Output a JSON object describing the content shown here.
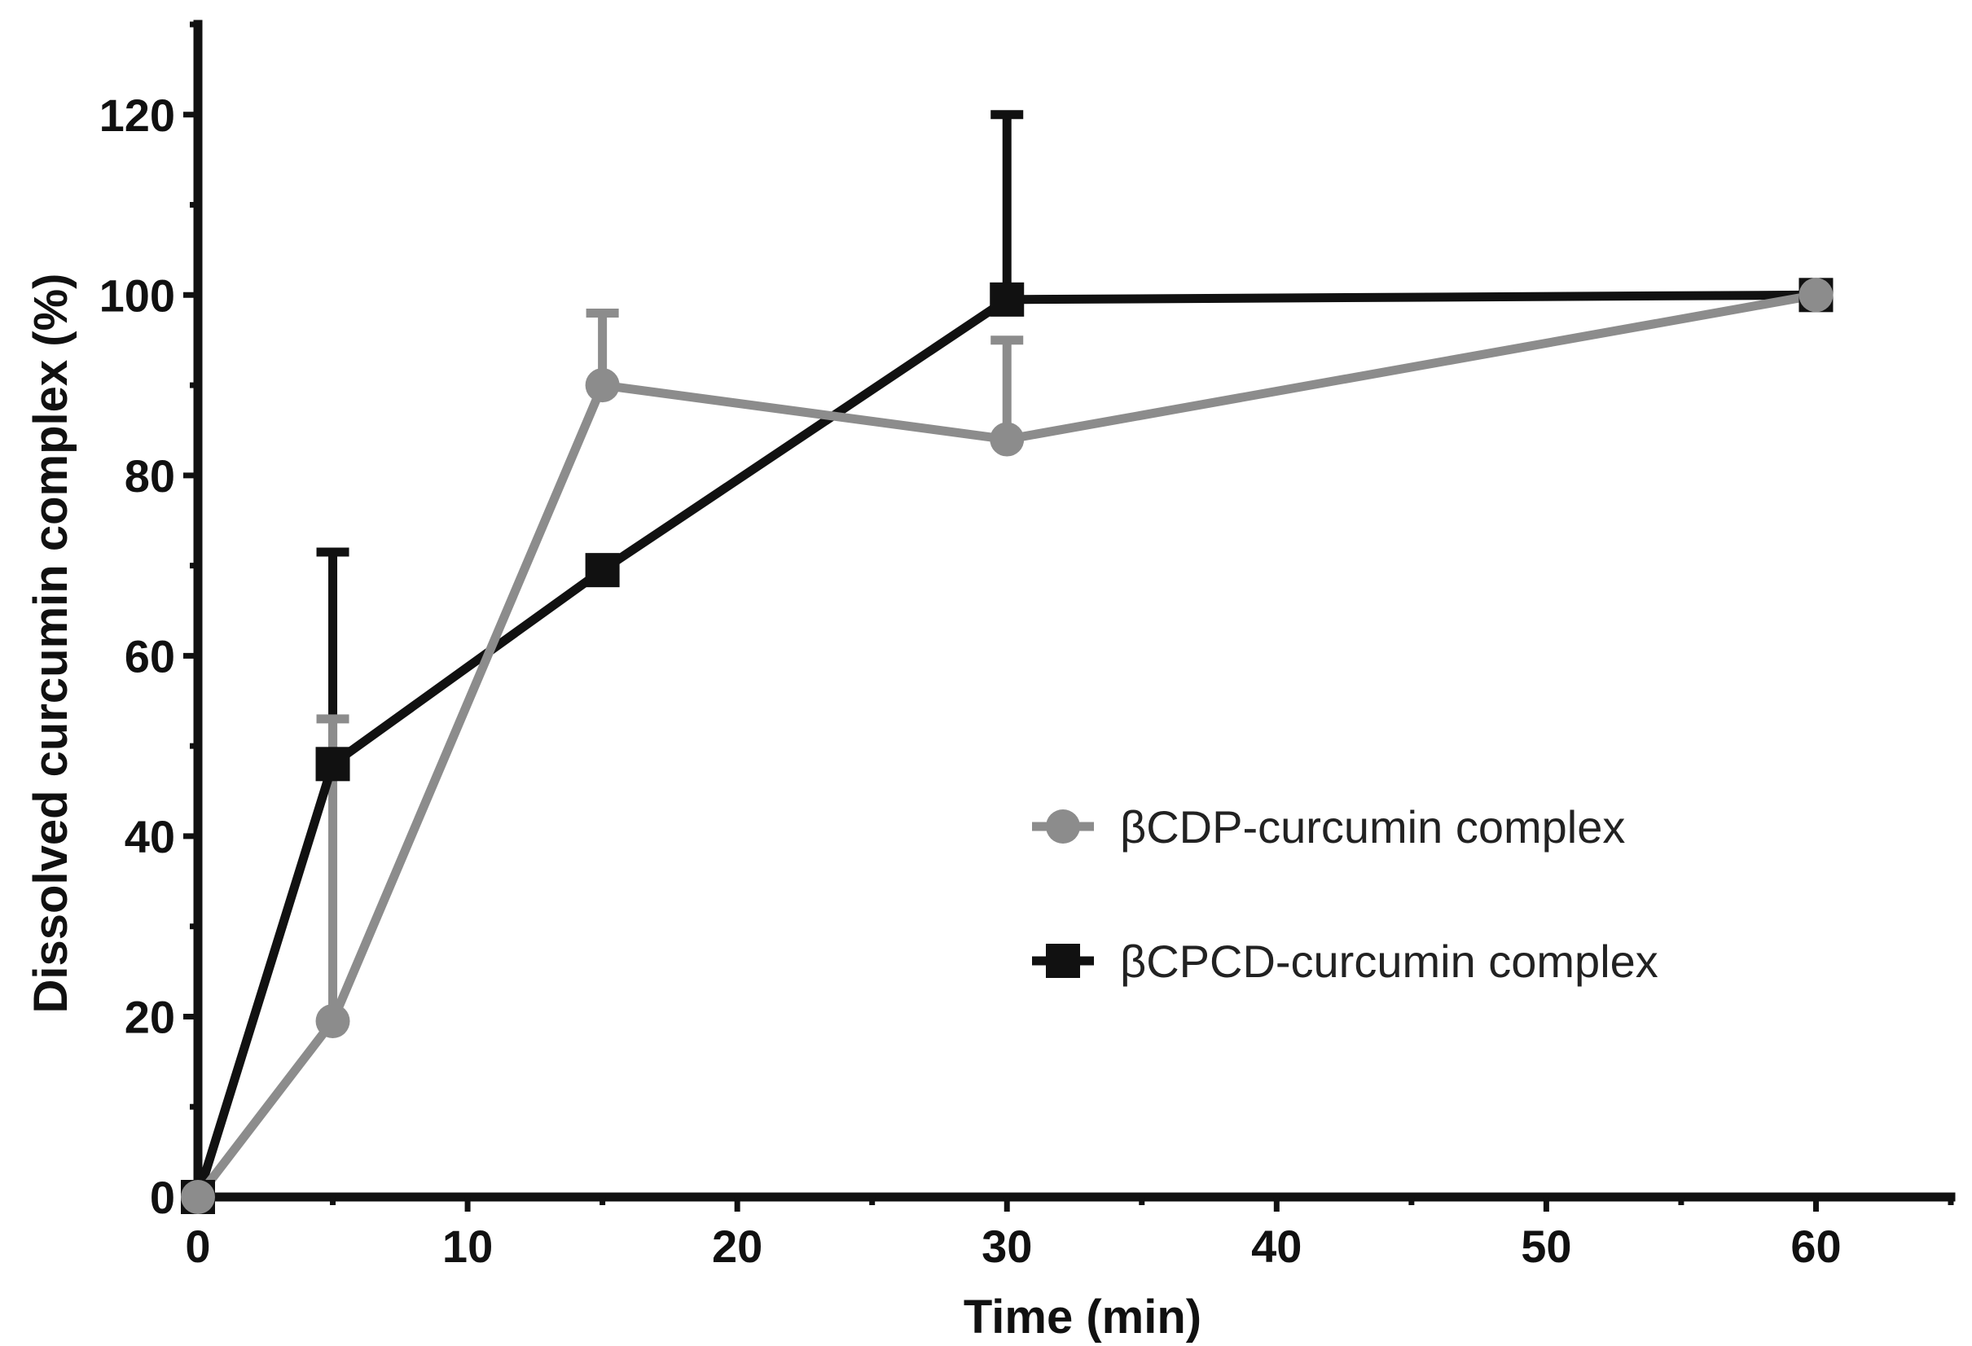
{
  "chart_data": {
    "type": "line",
    "title": "",
    "xlabel": "Time (min)",
    "ylabel": "Dissolved curcumin complex (%)",
    "xlim": [
      0,
      65
    ],
    "ylim": [
      0,
      130
    ],
    "xticks": [
      0,
      10,
      20,
      30,
      40,
      50,
      60
    ],
    "yticks": [
      0,
      20,
      40,
      60,
      80,
      100,
      120
    ],
    "grid": false,
    "legend_position": "center-right",
    "series": [
      {
        "name": "βCDP-curcumin complex",
        "color": "#8c8c8c",
        "marker": "circle",
        "x": [
          0,
          5,
          15,
          30,
          60
        ],
        "y": [
          0,
          19.5,
          90,
          84,
          100
        ],
        "error_upper": [
          0,
          53,
          98,
          95,
          100
        ]
      },
      {
        "name": "βCPCD-curcumin complex",
        "color": "#111111",
        "marker": "square",
        "x": [
          0,
          5,
          15,
          30,
          60
        ],
        "y": [
          0,
          48,
          69.5,
          99.5,
          100
        ],
        "error_upper": [
          0,
          71.5,
          69.5,
          120,
          100
        ]
      }
    ]
  }
}
